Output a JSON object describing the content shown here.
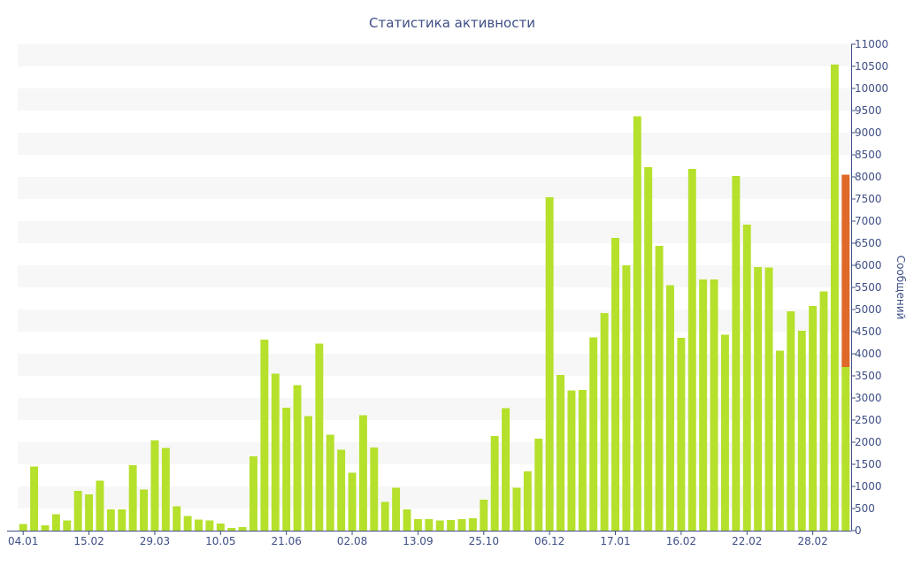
{
  "chart_data": {
    "type": "bar",
    "title": "Статистика активности",
    "xlabel": "",
    "ylabel": "Сообщений",
    "ylim": [
      0,
      11000
    ],
    "y_ticks": [
      0,
      500,
      1000,
      1500,
      2000,
      2500,
      3000,
      3500,
      4000,
      4500,
      5000,
      5500,
      6000,
      6500,
      7000,
      7500,
      8000,
      8500,
      9000,
      9500,
      10000,
      10500,
      11000
    ],
    "x_tick_labels": [
      {
        "index": 0,
        "label": "04.01"
      },
      {
        "index": 6,
        "label": "15.02"
      },
      {
        "index": 12,
        "label": "29.03"
      },
      {
        "index": 18,
        "label": "10.05"
      },
      {
        "index": 24,
        "label": "21.06"
      },
      {
        "index": 30,
        "label": "02.08"
      },
      {
        "index": 36,
        "label": "13.09"
      },
      {
        "index": 42,
        "label": "25.10"
      },
      {
        "index": 48,
        "label": "06.12"
      },
      {
        "index": 54,
        "label": "17.01"
      },
      {
        "index": 60,
        "label": "16.02"
      },
      {
        "index": 66,
        "label": "22.02"
      },
      {
        "index": 72,
        "label": "28.02"
      }
    ],
    "grid": true,
    "y_axis_position": "right",
    "colors": {
      "bar": "#b5e02b",
      "highlight": "#e0692a",
      "text": "#3f4f86",
      "band": "#f7f7f7"
    },
    "values": [
      150,
      1450,
      120,
      370,
      230,
      900,
      820,
      1130,
      480,
      480,
      1480,
      930,
      2040,
      1870,
      550,
      330,
      250,
      230,
      160,
      60,
      80,
      1680,
      4320,
      3550,
      2780,
      3290,
      2590,
      4230,
      2170,
      1830,
      1310,
      2610,
      1880,
      650,
      970,
      480,
      260,
      260,
      230,
      240,
      260,
      280,
      700,
      2140,
      2770,
      970,
      1340,
      2080,
      7540,
      3520,
      3170,
      3180,
      4370,
      4920,
      6620,
      6000,
      9370,
      8220,
      6440,
      5550,
      4360,
      8180,
      5680,
      5680,
      4430,
      8020,
      6920,
      5960,
      5950,
      4070,
      4960,
      4520,
      5080,
      5410,
      10540,
      8050
    ],
    "last_bar_breakdown": {
      "green": 3700,
      "orange": 4350
    }
  }
}
